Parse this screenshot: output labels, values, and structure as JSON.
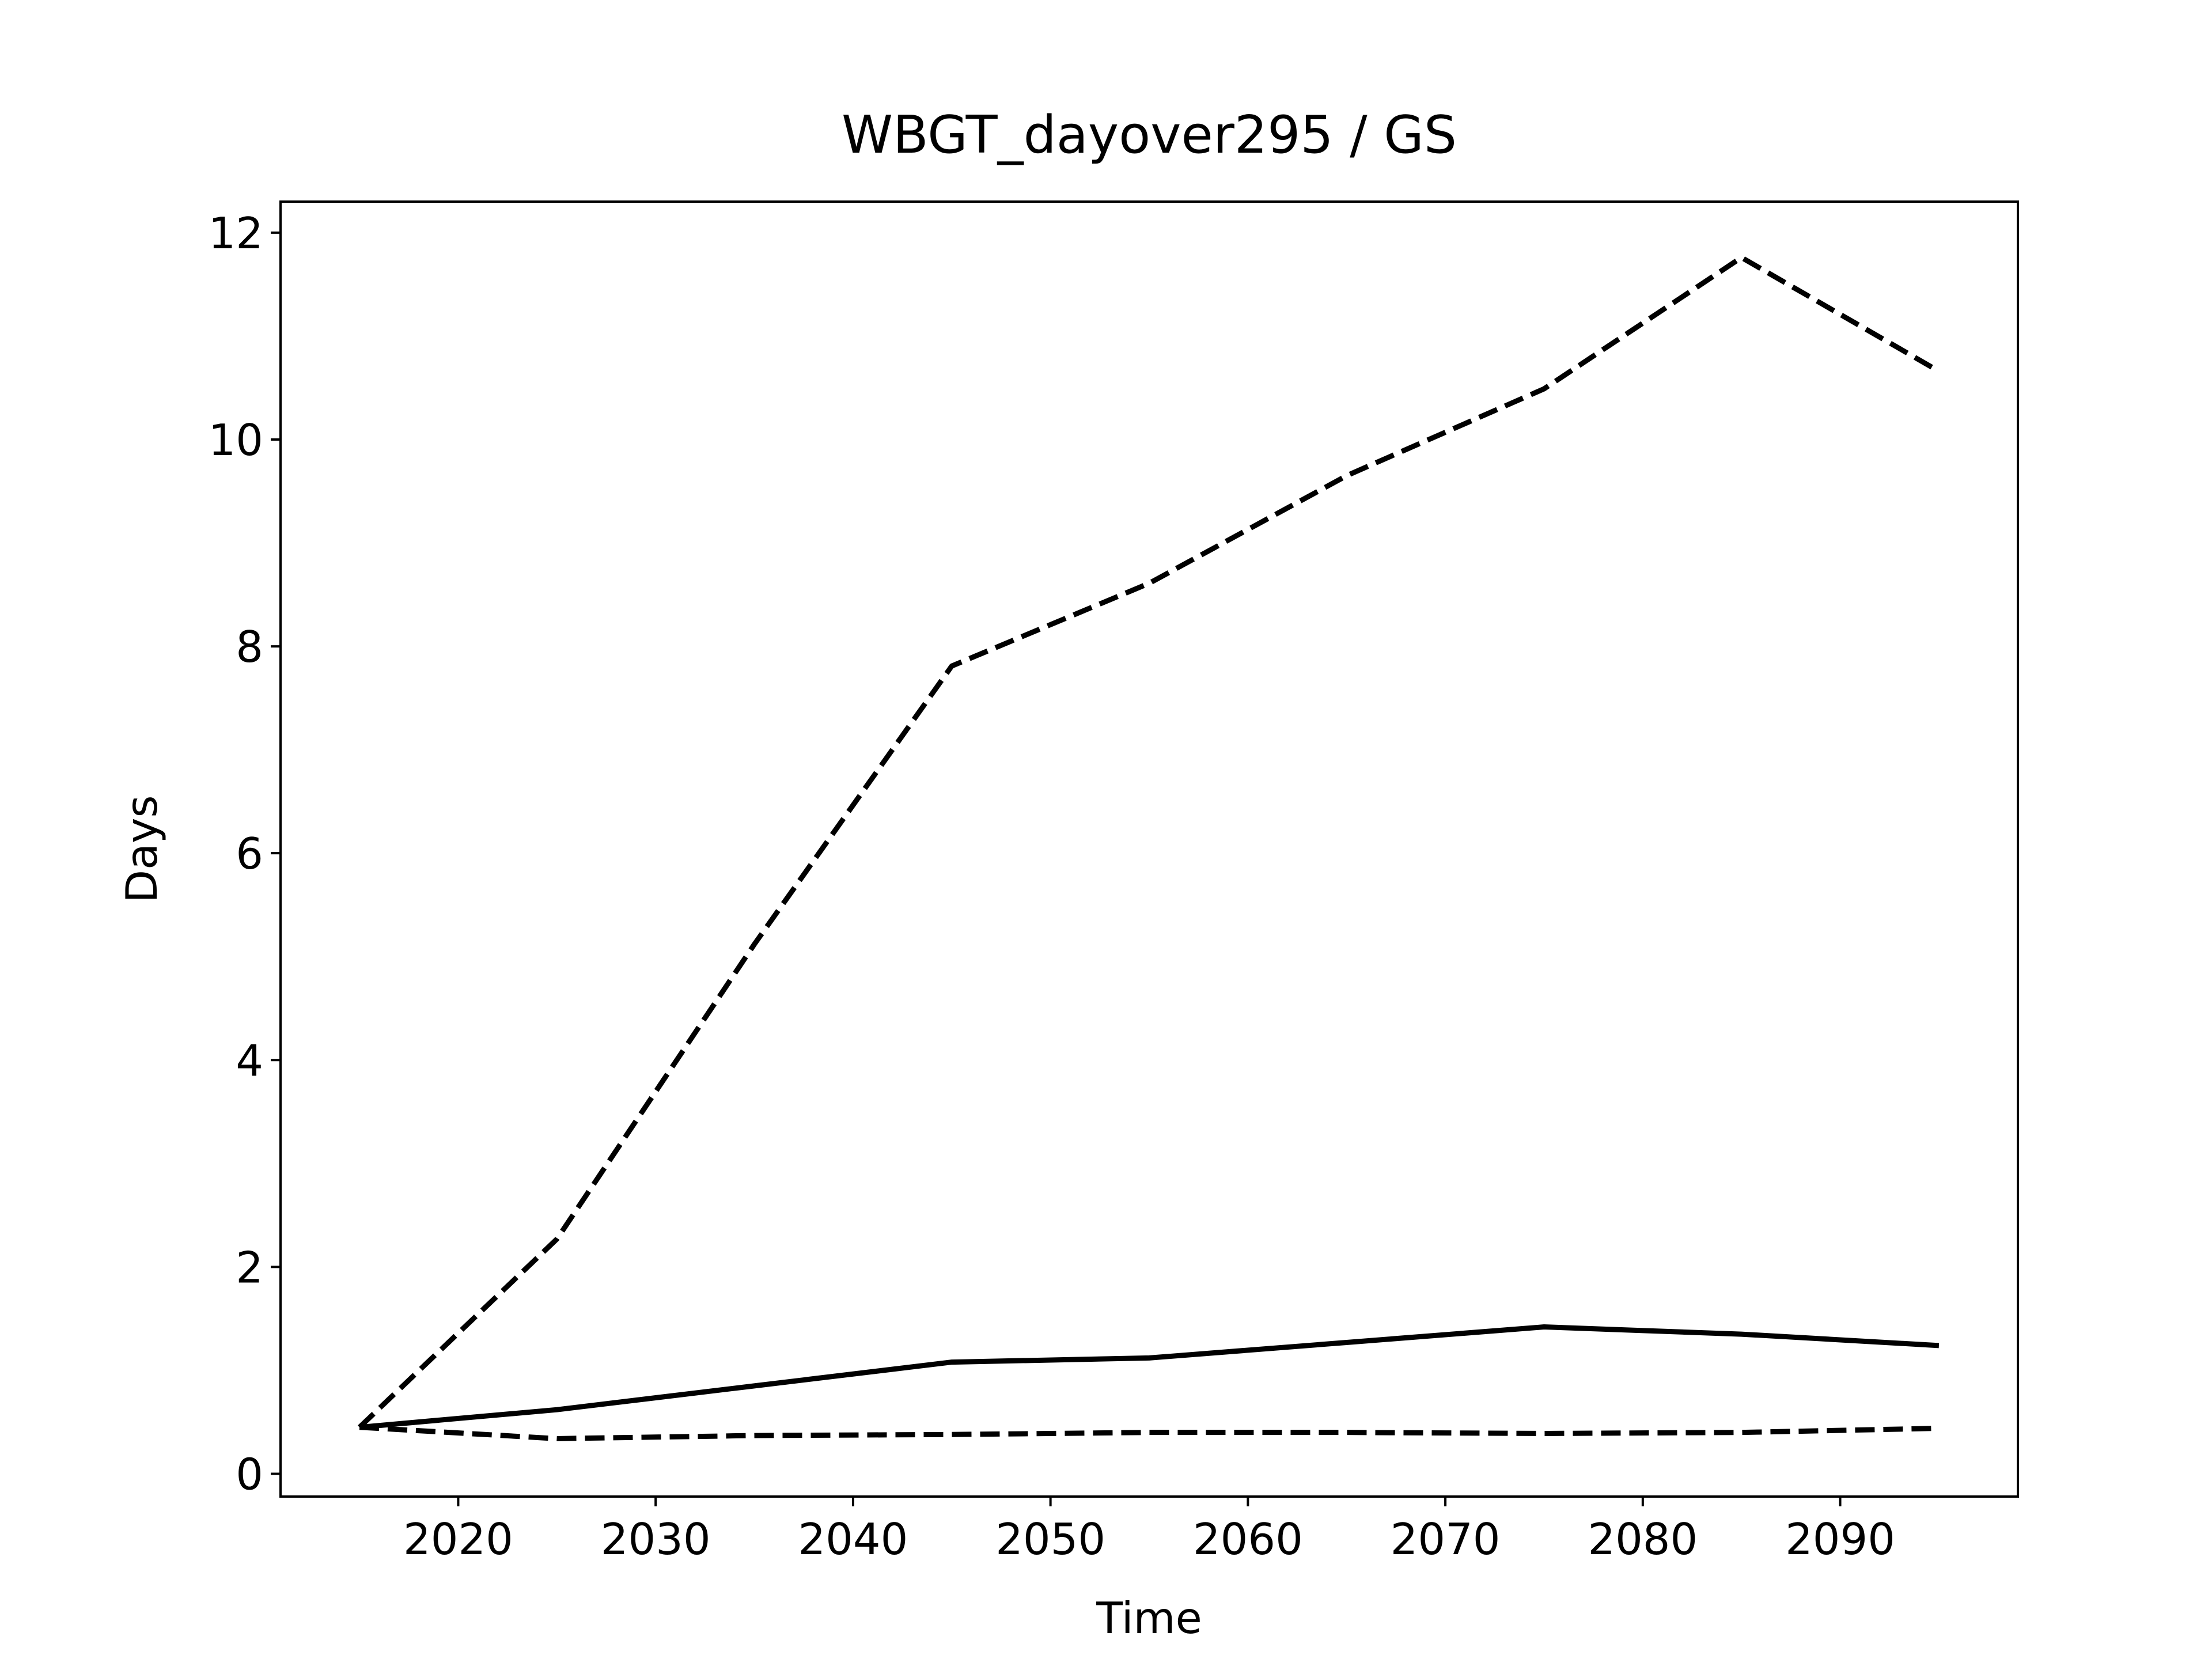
{
  "chart_data": {
    "type": "line",
    "title": "WBGT_dayover295 / GS",
    "xlabel": "Time",
    "ylabel": "Days",
    "x": [
      2015,
      2025,
      2035,
      2045,
      2055,
      2065,
      2075,
      2085,
      2095
    ],
    "series": [
      {
        "color": "#000000",
        "linestyle": "dashed",
        "values": [
          0.45,
          2.27,
          5.12,
          7.81,
          8.61,
          9.65,
          10.49,
          11.76,
          10.66
        ]
      },
      {
        "color": "#000000",
        "linestyle": "solid",
        "values": [
          0.45,
          0.62,
          0.85,
          1.08,
          1.12,
          1.27,
          1.42,
          1.35,
          1.24
        ]
      },
      {
        "color": "#000000",
        "linestyle": "dashed",
        "values": [
          0.45,
          0.34,
          0.37,
          0.38,
          0.4,
          0.4,
          0.39,
          0.4,
          0.44
        ]
      }
    ],
    "xlim": [
      2011,
      2099
    ],
    "xticks": [
      2020,
      2030,
      2040,
      2050,
      2060,
      2070,
      2080,
      2090
    ],
    "ylim": [
      -0.22,
      12.3
    ],
    "yticks": [
      0,
      2,
      4,
      6,
      8,
      10,
      12
    ],
    "grid": false
  }
}
